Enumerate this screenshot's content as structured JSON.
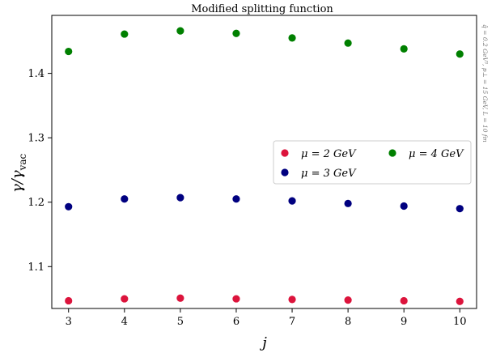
{
  "chart_data": {
    "type": "scatter",
    "title": "Modified splitting function",
    "xlabel": "j",
    "ylabel_main": "γ/γ",
    "ylabel_sub": "vac",
    "side_note": "q̂ = 0.2 GeV³, p⊥ = 15 GeV, L = 10 fm",
    "x": [
      3,
      4,
      5,
      6,
      7,
      8,
      9,
      10
    ],
    "xlim": [
      2.7,
      10.3
    ],
    "ylim": [
      1.035,
      1.49
    ],
    "xticks": [
      "3",
      "4",
      "5",
      "6",
      "7",
      "8",
      "9",
      "10"
    ],
    "yticks": [
      "1.1",
      "1.2",
      "1.3",
      "1.4"
    ],
    "ytick_values": [
      1.1,
      1.2,
      1.3,
      1.4
    ],
    "legend_position": "center-right",
    "grid": false,
    "series": [
      {
        "name": "μ = 2 GeV",
        "color": "#dc143c",
        "values": [
          1.047,
          1.05,
          1.051,
          1.05,
          1.049,
          1.048,
          1.047,
          1.046
        ]
      },
      {
        "name": "μ = 3 GeV",
        "color": "#000080",
        "values": [
          1.193,
          1.205,
          1.207,
          1.205,
          1.202,
          1.198,
          1.194,
          1.19
        ]
      },
      {
        "name": "μ = 4 GeV",
        "color": "#008000",
        "values": [
          1.434,
          1.461,
          1.466,
          1.462,
          1.455,
          1.447,
          1.438,
          1.43
        ]
      }
    ]
  }
}
